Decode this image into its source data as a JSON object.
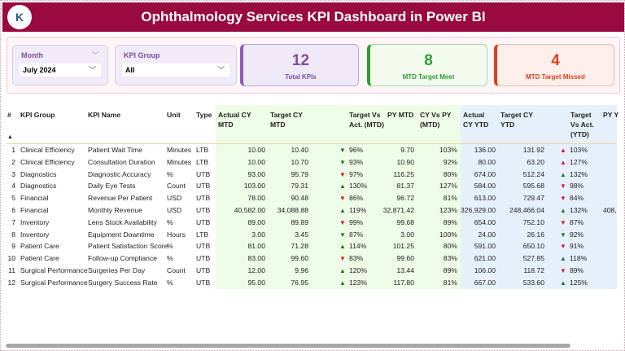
{
  "header": {
    "title": "Ophthalmology Services KPI Dashboard in Power BI",
    "logo_text": "K"
  },
  "filters": {
    "month": {
      "label": "Month",
      "value": "July 2024"
    },
    "kpi_group": {
      "label": "KPI Group",
      "value": "All"
    }
  },
  "cards": [
    {
      "value": "12",
      "label": "Total KPIs",
      "color": "#7a4fa0"
    },
    {
      "value": "8",
      "label": "MTD Target Meet",
      "color": "#2e9e2e"
    },
    {
      "value": "4",
      "label": "MTD Target Missed",
      "color": "#e0401a"
    }
  ],
  "table": {
    "headers": [
      "#",
      "KPI Group",
      "KPI Name",
      "Unit",
      "Type",
      "Actual CY MTD",
      "Target CY MTD",
      "Target Vs Act. (MTD)",
      "PY MTD",
      "CY Vs PY (MTD)",
      "Actual CY YTD",
      "Target CY YTD",
      "Target Vs Act. (YTD)",
      "PY Y"
    ],
    "sort_indicator": "▲",
    "rows": [
      {
        "n": "1",
        "group": "Clinical Efficiency",
        "name": "Patient Wait Time",
        "unit": "Minutes",
        "type": "LTB",
        "a_mtd": "10.00",
        "t_mtd": "10.40",
        "mtd_arrow": "down",
        "mtd_status": "good",
        "tva_mtd": "96%",
        "py_mtd": "9.70",
        "cvp_mtd": "103%",
        "a_ytd": "136.00",
        "t_ytd": "131.92",
        "ytd_arrow": "up",
        "ytd_status": "bad",
        "tva_ytd": "103%",
        "py_ytd": ""
      },
      {
        "n": "2",
        "group": "Clinical Efficiency",
        "name": "Consultation Duration",
        "unit": "Minutes",
        "type": "LTB",
        "a_mtd": "10.00",
        "t_mtd": "10.70",
        "mtd_arrow": "down",
        "mtd_status": "good",
        "tva_mtd": "93%",
        "py_mtd": "10.90",
        "cvp_mtd": "92%",
        "a_ytd": "80.00",
        "t_ytd": "63.20",
        "ytd_arrow": "up",
        "ytd_status": "bad",
        "tva_ytd": "127%",
        "py_ytd": ""
      },
      {
        "n": "3",
        "group": "Diagnostics",
        "name": "Diagnostic Accuracy",
        "unit": "%",
        "type": "UTB",
        "a_mtd": "93.00",
        "t_mtd": "95.79",
        "mtd_arrow": "down",
        "mtd_status": "bad",
        "tva_mtd": "97%",
        "py_mtd": "116.25",
        "cvp_mtd": "80%",
        "a_ytd": "674.00",
        "t_ytd": "512.24",
        "ytd_arrow": "up",
        "ytd_status": "good",
        "tva_ytd": "132%",
        "py_ytd": ""
      },
      {
        "n": "4",
        "group": "Diagnostics",
        "name": "Daily Eye Tests",
        "unit": "Count",
        "type": "UTB",
        "a_mtd": "103.00",
        "t_mtd": "79.31",
        "mtd_arrow": "up",
        "mtd_status": "good",
        "tva_mtd": "130%",
        "py_mtd": "81.37",
        "cvp_mtd": "127%",
        "a_ytd": "584.00",
        "t_ytd": "595.68",
        "ytd_arrow": "down",
        "ytd_status": "bad",
        "tva_ytd": "98%",
        "py_ytd": ""
      },
      {
        "n": "5",
        "group": "Financial",
        "name": "Revenue Per Patient",
        "unit": "USD",
        "type": "UTB",
        "a_mtd": "78.00",
        "t_mtd": "90.48",
        "mtd_arrow": "down",
        "mtd_status": "bad",
        "tva_mtd": "86%",
        "py_mtd": "96.72",
        "cvp_mtd": "81%",
        "a_ytd": "613.00",
        "t_ytd": "729.47",
        "ytd_arrow": "down",
        "ytd_status": "bad",
        "tva_ytd": "84%",
        "py_ytd": ""
      },
      {
        "n": "6",
        "group": "Financial",
        "name": "Monthly Revenue",
        "unit": "USD",
        "type": "UTB",
        "a_mtd": "40,582.00",
        "t_mtd": "34,088.88",
        "mtd_arrow": "up",
        "mtd_status": "good",
        "tva_mtd": "119%",
        "py_mtd": "32,871.42",
        "cvp_mtd": "123%",
        "a_ytd": "326,929.00",
        "t_ytd": "248,466.04",
        "ytd_arrow": "up",
        "ytd_status": "good",
        "tva_ytd": "132%",
        "py_ytd": "408,"
      },
      {
        "n": "7",
        "group": "Inventory",
        "name": "Lens Stock Availability",
        "unit": "%",
        "type": "UTB",
        "a_mtd": "89.00",
        "t_mtd": "89.89",
        "mtd_arrow": "down",
        "mtd_status": "bad",
        "tva_mtd": "99%",
        "py_mtd": "99.68",
        "cvp_mtd": "89%",
        "a_ytd": "654.00",
        "t_ytd": "752.10",
        "ytd_arrow": "down",
        "ytd_status": "bad",
        "tva_ytd": "87%",
        "py_ytd": ""
      },
      {
        "n": "8",
        "group": "Inventory",
        "name": "Equipment Downtime",
        "unit": "Hours",
        "type": "LTB",
        "a_mtd": "3.00",
        "t_mtd": "3.45",
        "mtd_arrow": "down",
        "mtd_status": "good",
        "tva_mtd": "87%",
        "py_mtd": "3.00",
        "cvp_mtd": "100%",
        "a_ytd": "24.00",
        "t_ytd": "26.16",
        "ytd_arrow": "down",
        "ytd_status": "good",
        "tva_ytd": "92%",
        "py_ytd": ""
      },
      {
        "n": "9",
        "group": "Patient Care",
        "name": "Patient Satisfaction Score",
        "unit": "%",
        "type": "UTB",
        "a_mtd": "81.00",
        "t_mtd": "71.28",
        "mtd_arrow": "up",
        "mtd_status": "good",
        "tva_mtd": "114%",
        "py_mtd": "101.25",
        "cvp_mtd": "80%",
        "a_ytd": "591.00",
        "t_ytd": "650.10",
        "ytd_arrow": "down",
        "ytd_status": "bad",
        "tva_ytd": "91%",
        "py_ytd": ""
      },
      {
        "n": "10",
        "group": "Patient Care",
        "name": "Follow-up Compliance",
        "unit": "%",
        "type": "UTB",
        "a_mtd": "83.00",
        "t_mtd": "99.60",
        "mtd_arrow": "down",
        "mtd_status": "bad",
        "tva_mtd": "83%",
        "py_mtd": "99.60",
        "cvp_mtd": "83%",
        "a_ytd": "621.00",
        "t_ytd": "527.85",
        "ytd_arrow": "up",
        "ytd_status": "good",
        "tva_ytd": "118%",
        "py_ytd": ""
      },
      {
        "n": "11",
        "group": "Surgical Performance",
        "name": "Surgeries Per Day",
        "unit": "Count",
        "type": "UTB",
        "a_mtd": "12.00",
        "t_mtd": "9.96",
        "mtd_arrow": "up",
        "mtd_status": "good",
        "tva_mtd": "120%",
        "py_mtd": "13.44",
        "cvp_mtd": "89%",
        "a_ytd": "106.00",
        "t_ytd": "118.72",
        "ytd_arrow": "down",
        "ytd_status": "bad",
        "tva_ytd": "89%",
        "py_ytd": ""
      },
      {
        "n": "12",
        "group": "Surgical Performance",
        "name": "Surgery Success Rate",
        "unit": "%",
        "type": "UTB",
        "a_mtd": "95.00",
        "t_mtd": "76.95",
        "mtd_arrow": "up",
        "mtd_status": "good",
        "tva_mtd": "123%",
        "py_mtd": "117.80",
        "cvp_mtd": "81%",
        "a_ytd": "667.00",
        "t_ytd": "533.60",
        "ytd_arrow": "up",
        "ytd_status": "good",
        "tva_ytd": "125%",
        "py_ytd": ""
      }
    ]
  },
  "colors": {
    "header": "#990a3e",
    "good": "#1f7a1f",
    "bad": "#d0202a",
    "mtd_bg": "#eefbe6",
    "ytd_bg": "#e6f0fb"
  }
}
